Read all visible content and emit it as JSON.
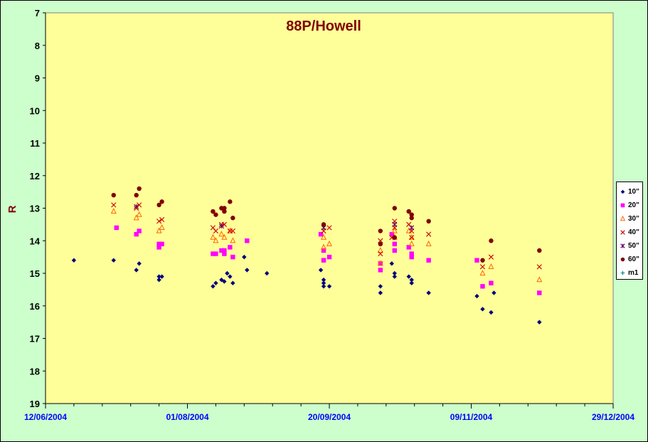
{
  "chart_data": {
    "type": "scatter",
    "title": "88P/Howell",
    "xlabel": "",
    "ylabel": "R",
    "y_inverted": true,
    "ylim": [
      7,
      19
    ],
    "yticks": [
      "7",
      "8",
      "9",
      "10",
      "11",
      "12",
      "13",
      "14",
      "15",
      "16",
      "17",
      "18",
      "19"
    ],
    "xlim": [
      "2004-06-12",
      "2004-12-29"
    ],
    "xticks": [
      "12/06/2004",
      "01/08/2004",
      "20/09/2004",
      "09/11/2004",
      "29/12/2004"
    ],
    "grid": false,
    "legend_position": "right",
    "colors": {
      "plot_bg": "#ffff99",
      "page_bg": "#ccffcc",
      "title": "#800000",
      "axis_label": "#800000",
      "tick_label": "#0000ff"
    },
    "series": [
      {
        "name": "10\"",
        "marker": "diamond",
        "color": "#000080",
        "points": [
          [
            "2004-06-22",
            14.6
          ],
          [
            "2004-07-06",
            14.6
          ],
          [
            "2004-07-14",
            14.9
          ],
          [
            "2004-07-15",
            14.7
          ],
          [
            "2004-07-22",
            15.2
          ],
          [
            "2004-07-22",
            15.1
          ],
          [
            "2004-07-23",
            15.1
          ],
          [
            "2004-08-10",
            15.4
          ],
          [
            "2004-08-11",
            15.3
          ],
          [
            "2004-08-13",
            15.2
          ],
          [
            "2004-08-14",
            15.25
          ],
          [
            "2004-08-15",
            15.0
          ],
          [
            "2004-08-16",
            15.1
          ],
          [
            "2004-08-17",
            15.3
          ],
          [
            "2004-08-21",
            14.5
          ],
          [
            "2004-08-22",
            14.9
          ],
          [
            "2004-08-29",
            15.0
          ],
          [
            "2004-09-17",
            14.9
          ],
          [
            "2004-09-18",
            15.2
          ],
          [
            "2004-09-18",
            15.4
          ],
          [
            "2004-09-18",
            15.3
          ],
          [
            "2004-09-20",
            15.4
          ],
          [
            "2004-10-08",
            15.6
          ],
          [
            "2004-10-08",
            15.4
          ],
          [
            "2004-10-12",
            14.7
          ],
          [
            "2004-10-13",
            15.1
          ],
          [
            "2004-10-13",
            15.0
          ],
          [
            "2004-10-18",
            15.1
          ],
          [
            "2004-10-19",
            15.3
          ],
          [
            "2004-10-19",
            15.2
          ],
          [
            "2004-10-25",
            15.6
          ],
          [
            "2004-11-11",
            15.7
          ],
          [
            "2004-11-13",
            16.1
          ],
          [
            "2004-11-16",
            16.2
          ],
          [
            "2004-11-17",
            15.6
          ],
          [
            "2004-12-03",
            16.5
          ]
        ]
      },
      {
        "name": "20\"",
        "marker": "square",
        "color": "#ff00ff",
        "points": [
          [
            "2004-07-07",
            13.6
          ],
          [
            "2004-07-14",
            13.8
          ],
          [
            "2004-07-15",
            13.7
          ],
          [
            "2004-07-22",
            14.2
          ],
          [
            "2004-07-22",
            14.1
          ],
          [
            "2004-07-23",
            14.1
          ],
          [
            "2004-08-10",
            14.4
          ],
          [
            "2004-08-11",
            14.4
          ],
          [
            "2004-08-13",
            14.3
          ],
          [
            "2004-08-14",
            14.4
          ],
          [
            "2004-08-14",
            14.3
          ],
          [
            "2004-08-16",
            14.2
          ],
          [
            "2004-08-17",
            14.5
          ],
          [
            "2004-08-22",
            14.0
          ],
          [
            "2004-09-17",
            13.8
          ],
          [
            "2004-09-18",
            14.6
          ],
          [
            "2004-09-18",
            14.3
          ],
          [
            "2004-09-20",
            14.5
          ],
          [
            "2004-10-08",
            14.9
          ],
          [
            "2004-10-08",
            14.7
          ],
          [
            "2004-10-12",
            13.8
          ],
          [
            "2004-10-13",
            14.3
          ],
          [
            "2004-10-13",
            14.1
          ],
          [
            "2004-10-18",
            14.2
          ],
          [
            "2004-10-19",
            14.5
          ],
          [
            "2004-10-19",
            14.4
          ],
          [
            "2004-10-25",
            14.6
          ],
          [
            "2004-11-11",
            14.6
          ],
          [
            "2004-11-13",
            15.4
          ],
          [
            "2004-11-16",
            15.3
          ],
          [
            "2004-12-03",
            15.6
          ]
        ]
      },
      {
        "name": "30\"",
        "marker": "triangle",
        "color": "#ff6600",
        "points": [
          [
            "2004-07-06",
            13.1
          ],
          [
            "2004-07-14",
            13.3
          ],
          [
            "2004-07-15",
            13.2
          ],
          [
            "2004-07-22",
            13.7
          ],
          [
            "2004-07-23",
            13.6
          ],
          [
            "2004-08-10",
            13.9
          ],
          [
            "2004-08-11",
            14.0
          ],
          [
            "2004-08-13",
            13.8
          ],
          [
            "2004-08-14",
            13.9
          ],
          [
            "2004-08-16",
            13.7
          ],
          [
            "2004-08-17",
            14.0
          ],
          [
            "2004-09-18",
            14.2
          ],
          [
            "2004-09-18",
            13.9
          ],
          [
            "2004-09-20",
            14.1
          ],
          [
            "2004-10-08",
            14.3
          ],
          [
            "2004-10-08",
            14.7
          ],
          [
            "2004-10-13",
            13.9
          ],
          [
            "2004-10-13",
            13.7
          ],
          [
            "2004-10-18",
            13.7
          ],
          [
            "2004-10-19",
            14.1
          ],
          [
            "2004-10-19",
            13.9
          ],
          [
            "2004-10-25",
            14.1
          ],
          [
            "2004-11-13",
            15.0
          ],
          [
            "2004-11-16",
            14.8
          ],
          [
            "2004-12-03",
            15.2
          ]
        ]
      },
      {
        "name": "40\"",
        "marker": "x",
        "color": "#cc0000",
        "points": [
          [
            "2004-07-06",
            12.9
          ],
          [
            "2004-07-14",
            13.0
          ],
          [
            "2004-07-15",
            12.9
          ],
          [
            "2004-07-22",
            13.4
          ],
          [
            "2004-07-23",
            13.35
          ],
          [
            "2004-08-10",
            13.6
          ],
          [
            "2004-08-11",
            13.7
          ],
          [
            "2004-08-13",
            13.5
          ],
          [
            "2004-08-14",
            13.5
          ],
          [
            "2004-08-16",
            13.7
          ],
          [
            "2004-08-17",
            13.7
          ],
          [
            "2004-09-18",
            13.7
          ],
          [
            "2004-09-20",
            13.6
          ],
          [
            "2004-10-08",
            14.4
          ],
          [
            "2004-10-08",
            14.0
          ],
          [
            "2004-10-12",
            13.9
          ],
          [
            "2004-10-13",
            13.6
          ],
          [
            "2004-10-13",
            13.4
          ],
          [
            "2004-10-18",
            13.5
          ],
          [
            "2004-10-19",
            13.9
          ],
          [
            "2004-10-19",
            13.7
          ],
          [
            "2004-10-25",
            13.8
          ],
          [
            "2004-11-13",
            14.8
          ],
          [
            "2004-11-16",
            14.5
          ],
          [
            "2004-12-03",
            14.8
          ]
        ]
      },
      {
        "name": "50\"",
        "marker": "star",
        "color": "#660066",
        "points": [
          [
            "2004-07-14",
            12.95
          ],
          [
            "2004-08-13",
            13.55
          ],
          [
            "2004-09-18",
            13.6
          ],
          [
            "2004-10-13",
            13.5
          ],
          [
            "2004-10-19",
            13.6
          ]
        ]
      },
      {
        "name": "60\"",
        "marker": "circle",
        "color": "#800000",
        "points": [
          [
            "2004-07-06",
            12.6
          ],
          [
            "2004-07-14",
            12.6
          ],
          [
            "2004-07-15",
            12.4
          ],
          [
            "2004-07-22",
            12.9
          ],
          [
            "2004-07-23",
            12.8
          ],
          [
            "2004-08-10",
            13.1
          ],
          [
            "2004-08-11",
            13.2
          ],
          [
            "2004-08-13",
            13.0
          ],
          [
            "2004-08-14",
            13.0
          ],
          [
            "2004-08-14",
            13.1
          ],
          [
            "2004-08-16",
            12.8
          ],
          [
            "2004-08-17",
            13.3
          ],
          [
            "2004-09-18",
            13.5
          ],
          [
            "2004-10-08",
            13.7
          ],
          [
            "2004-10-08",
            14.1
          ],
          [
            "2004-10-13",
            13.0
          ],
          [
            "2004-10-13",
            13.9
          ],
          [
            "2004-10-18",
            13.1
          ],
          [
            "2004-10-19",
            13.2
          ],
          [
            "2004-10-19",
            13.3
          ],
          [
            "2004-10-25",
            13.4
          ],
          [
            "2004-11-13",
            14.6
          ],
          [
            "2004-11-16",
            14.0
          ],
          [
            "2004-12-03",
            14.3
          ]
        ]
      },
      {
        "name": "m1",
        "marker": "plus",
        "color": "#008080",
        "points": []
      }
    ]
  }
}
